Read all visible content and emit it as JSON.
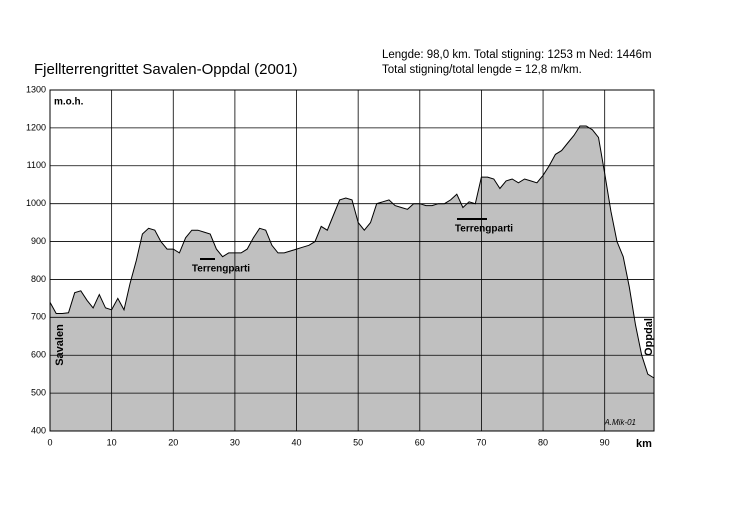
{
  "chart_data": {
    "type": "area",
    "title": "Fjellterrengrittet Savalen-Oppdal (2001)",
    "subtitle": [
      "Lengde: 98,0 km.  Total stigning: 1253 m Ned: 1446m",
      "Total stigning/total lengde = 12,8 m/km."
    ],
    "y_label": "m.o.h.",
    "x_label": "km",
    "start_label": "Savalen",
    "end_label": "Oppdal",
    "signature": "A.Mik-01",
    "annotations": [
      "Terrengparti",
      "Terrengparti"
    ],
    "color": "#c0c0c0",
    "line_color": "#000000",
    "grid": true,
    "xlim": [
      0,
      98
    ],
    "xticks": [
      0,
      10,
      20,
      30,
      40,
      50,
      60,
      70,
      80,
      90
    ],
    "ylim": [
      400,
      1300
    ],
    "yticks": [
      400,
      500,
      600,
      700,
      800,
      900,
      1000,
      1100,
      1200,
      1300
    ],
    "x": [
      0,
      1,
      2,
      3,
      4,
      5,
      6,
      7,
      8,
      9,
      10,
      11,
      12,
      13,
      14,
      15,
      16,
      17,
      18,
      19,
      20,
      21,
      22,
      23,
      24,
      25,
      26,
      27,
      28,
      29,
      30,
      31,
      32,
      33,
      34,
      35,
      36,
      37,
      38,
      39,
      40,
      41,
      42,
      43,
      44,
      45,
      46,
      47,
      48,
      49,
      50,
      51,
      52,
      53,
      54,
      55,
      56,
      57,
      58,
      59,
      60,
      61,
      62,
      63,
      64,
      65,
      66,
      67,
      68,
      69,
      70,
      71,
      72,
      73,
      74,
      75,
      76,
      77,
      78,
      79,
      80,
      81,
      82,
      83,
      84,
      85,
      86,
      87,
      88,
      89,
      90,
      91,
      92,
      93,
      94,
      95,
      96,
      97,
      98
    ],
    "values": [
      740,
      710,
      710,
      712,
      765,
      770,
      745,
      725,
      760,
      725,
      720,
      750,
      720,
      790,
      850,
      920,
      935,
      930,
      900,
      880,
      880,
      870,
      910,
      930,
      930,
      925,
      920,
      880,
      860,
      870,
      870,
      870,
      880,
      910,
      935,
      930,
      890,
      870,
      870,
      875,
      880,
      885,
      890,
      900,
      940,
      930,
      970,
      1010,
      1015,
      1010,
      950,
      930,
      950,
      1000,
      1005,
      1010,
      995,
      990,
      985,
      1000,
      1000,
      995,
      995,
      1000,
      1000,
      1010,
      1025,
      990,
      1005,
      1000,
      1070,
      1070,
      1065,
      1040,
      1060,
      1065,
      1055,
      1065,
      1060,
      1055,
      1075,
      1100,
      1130,
      1140,
      1160,
      1180,
      1205,
      1205,
      1195,
      1175,
      1080,
      980,
      900,
      860,
      780,
      680,
      600,
      550,
      540
    ]
  }
}
